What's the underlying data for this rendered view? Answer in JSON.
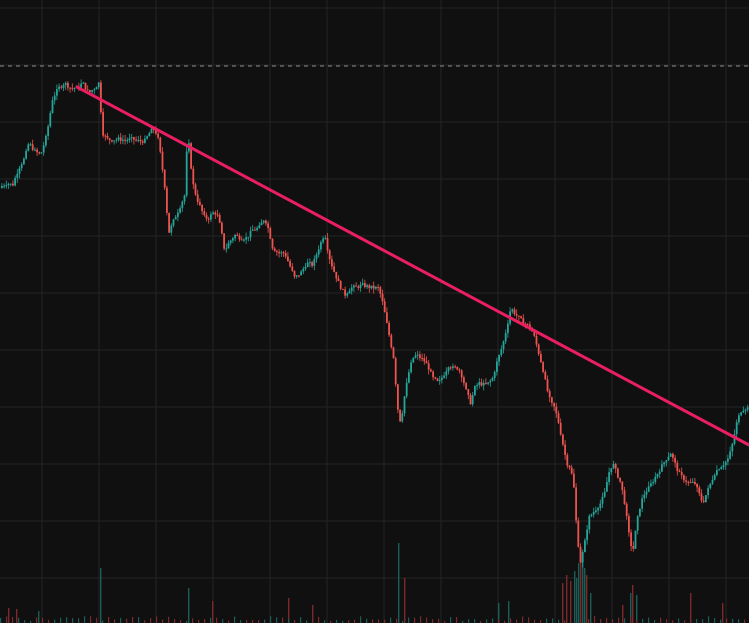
{
  "colors": {
    "background": "#101010",
    "grid": "#242424",
    "up": "#26a69a",
    "down": "#ef5350",
    "trendline": "#e91e63",
    "dashed_level": "#8a8a8a",
    "volume_up": "#1b5e58",
    "volume_down": "#7a2a2a"
  },
  "chart_data": {
    "type": "candlestick",
    "title": "",
    "xlabel": "",
    "ylabel": "",
    "grid": true,
    "legend": "none",
    "ylim": [
      0,
      623
    ],
    "dashed_level": 557,
    "trendline": {
      "x1": 0,
      "y1": 577,
      "x2": 749,
      "y2": 178
    },
    "waypoints": [
      [
        0,
        435
      ],
      [
        8,
        440
      ],
      [
        14,
        438
      ],
      [
        20,
        455
      ],
      [
        26,
        465
      ],
      [
        30,
        480
      ],
      [
        36,
        472
      ],
      [
        42,
        468
      ],
      [
        48,
        488
      ],
      [
        54,
        525
      ],
      [
        60,
        535
      ],
      [
        66,
        540
      ],
      [
        72,
        535
      ],
      [
        78,
        535
      ],
      [
        84,
        540
      ],
      [
        90,
        530
      ],
      [
        96,
        535
      ],
      [
        100,
        540
      ],
      [
        104,
        490
      ],
      [
        108,
        484
      ],
      [
        114,
        483
      ],
      [
        120,
        484
      ],
      [
        126,
        483
      ],
      [
        134,
        484
      ],
      [
        140,
        482
      ],
      [
        146,
        482
      ],
      [
        152,
        492
      ],
      [
        156,
        494
      ],
      [
        160,
        482
      ],
      [
        166,
        437
      ],
      [
        170,
        390
      ],
      [
        176,
        405
      ],
      [
        182,
        418
      ],
      [
        186,
        428
      ],
      [
        188,
        470
      ],
      [
        190,
        480
      ],
      [
        194,
        440
      ],
      [
        198,
        425
      ],
      [
        202,
        415
      ],
      [
        206,
        405
      ],
      [
        210,
        405
      ],
      [
        214,
        410
      ],
      [
        218,
        410
      ],
      [
        222,
        395
      ],
      [
        226,
        372
      ],
      [
        230,
        380
      ],
      [
        236,
        388
      ],
      [
        242,
        385
      ],
      [
        248,
        385
      ],
      [
        254,
        393
      ],
      [
        260,
        395
      ],
      [
        266,
        405
      ],
      [
        270,
        393
      ],
      [
        274,
        375
      ],
      [
        280,
        370
      ],
      [
        286,
        370
      ],
      [
        290,
        360
      ],
      [
        296,
        345
      ],
      [
        302,
        350
      ],
      [
        308,
        360
      ],
      [
        314,
        358
      ],
      [
        320,
        375
      ],
      [
        326,
        390
      ],
      [
        330,
        368
      ],
      [
        334,
        355
      ],
      [
        340,
        340
      ],
      [
        346,
        328
      ],
      [
        352,
        335
      ],
      [
        358,
        336
      ],
      [
        364,
        338
      ],
      [
        370,
        336
      ],
      [
        376,
        335
      ],
      [
        380,
        335
      ],
      [
        384,
        320
      ],
      [
        388,
        300
      ],
      [
        392,
        280
      ],
      [
        396,
        260
      ],
      [
        398,
        220
      ],
      [
        402,
        200
      ],
      [
        406,
        228
      ],
      [
        410,
        250
      ],
      [
        414,
        265
      ],
      [
        418,
        268
      ],
      [
        422,
        265
      ],
      [
        426,
        262
      ],
      [
        430,
        255
      ],
      [
        434,
        245
      ],
      [
        440,
        240
      ],
      [
        446,
        250
      ],
      [
        450,
        258
      ],
      [
        454,
        255
      ],
      [
        460,
        255
      ],
      [
        464,
        245
      ],
      [
        468,
        230
      ],
      [
        472,
        220
      ],
      [
        476,
        235
      ],
      [
        480,
        240
      ],
      [
        486,
        238
      ],
      [
        490,
        240
      ],
      [
        494,
        245
      ],
      [
        498,
        260
      ],
      [
        504,
        278
      ],
      [
        508,
        295
      ],
      [
        512,
        315
      ],
      [
        516,
        310
      ],
      [
        520,
        305
      ],
      [
        526,
        300
      ],
      [
        532,
        295
      ],
      [
        536,
        285
      ],
      [
        540,
        270
      ],
      [
        544,
        255
      ],
      [
        548,
        235
      ],
      [
        552,
        220
      ],
      [
        556,
        215
      ],
      [
        560,
        200
      ],
      [
        564,
        180
      ],
      [
        568,
        160
      ],
      [
        572,
        155
      ],
      [
        576,
        130
      ],
      [
        578,
        90
      ],
      [
        582,
        60
      ],
      [
        586,
        80
      ],
      [
        590,
        105
      ],
      [
        594,
        110
      ],
      [
        598,
        115
      ],
      [
        602,
        120
      ],
      [
        606,
        130
      ],
      [
        610,
        150
      ],
      [
        614,
        160
      ],
      [
        618,
        150
      ],
      [
        622,
        140
      ],
      [
        626,
        120
      ],
      [
        630,
        90
      ],
      [
        634,
        70
      ],
      [
        638,
        100
      ],
      [
        642,
        120
      ],
      [
        646,
        130
      ],
      [
        650,
        135
      ],
      [
        656,
        145
      ],
      [
        662,
        155
      ],
      [
        668,
        165
      ],
      [
        672,
        170
      ],
      [
        676,
        160
      ],
      [
        680,
        150
      ],
      [
        684,
        145
      ],
      [
        690,
        140
      ],
      [
        696,
        140
      ],
      [
        700,
        130
      ],
      [
        704,
        120
      ],
      [
        708,
        130
      ],
      [
        712,
        140
      ],
      [
        716,
        150
      ],
      [
        720,
        155
      ],
      [
        726,
        160
      ],
      [
        730,
        165
      ],
      [
        734,
        180
      ],
      [
        738,
        200
      ],
      [
        742,
        212
      ],
      [
        746,
        215
      ],
      [
        749,
        215
      ]
    ],
    "volume_spikes": [
      [
        8,
        15
      ],
      [
        16,
        14
      ],
      [
        38,
        12
      ],
      [
        100,
        55
      ],
      [
        188,
        35
      ],
      [
        212,
        22
      ],
      [
        288,
        25
      ],
      [
        312,
        18
      ],
      [
        398,
        80
      ],
      [
        404,
        45
      ],
      [
        498,
        20
      ],
      [
        508,
        22
      ],
      [
        562,
        40
      ],
      [
        566,
        48
      ],
      [
        570,
        42
      ],
      [
        574,
        52
      ],
      [
        576,
        45
      ],
      [
        578,
        60
      ],
      [
        580,
        70
      ],
      [
        582,
        68
      ],
      [
        584,
        55
      ],
      [
        586,
        48
      ],
      [
        590,
        30
      ],
      [
        622,
        18
      ],
      [
        630,
        30
      ],
      [
        632,
        38
      ],
      [
        636,
        28
      ],
      [
        690,
        30
      ],
      [
        722,
        20
      ]
    ]
  }
}
